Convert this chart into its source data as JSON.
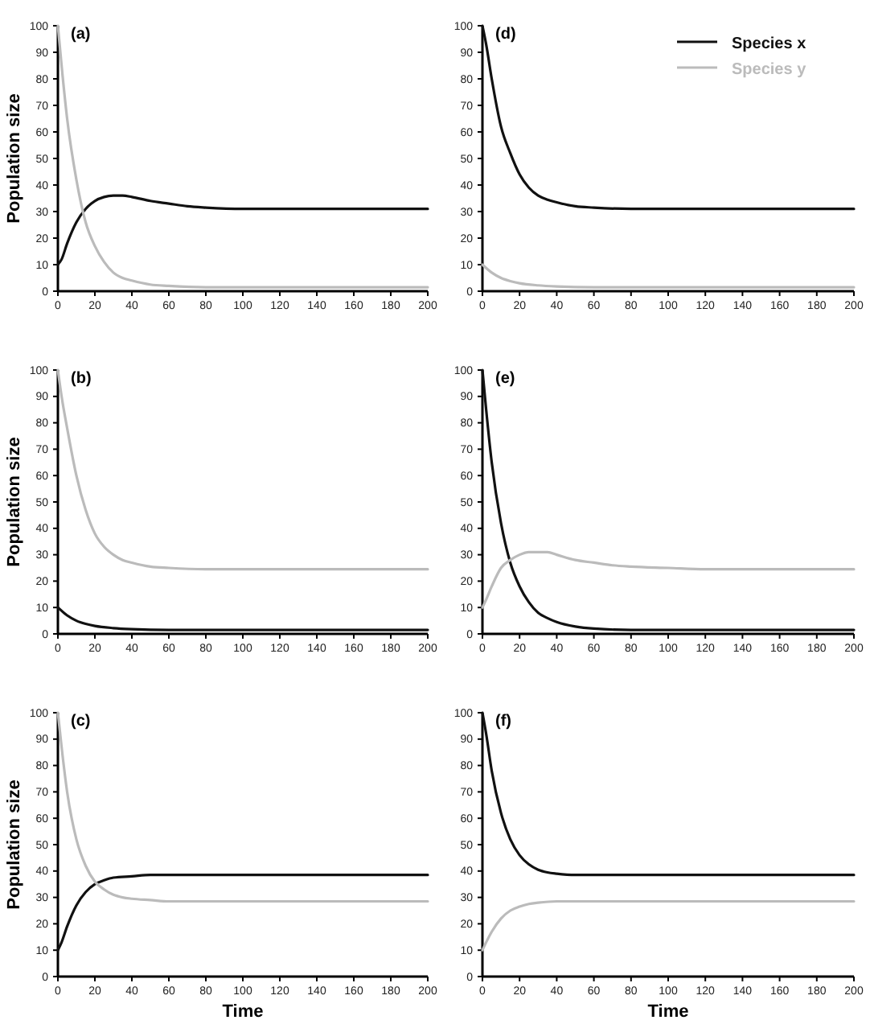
{
  "chart_data": [
    {
      "type": "line",
      "title": "(a)",
      "ylabel": "Population size",
      "xlim": [
        0,
        200
      ],
      "ylim": [
        0,
        100
      ],
      "xticks": [
        0,
        20,
        40,
        60,
        80,
        100,
        120,
        140,
        160,
        180,
        200
      ],
      "yticks": [
        0,
        10,
        20,
        30,
        40,
        50,
        60,
        70,
        80,
        90,
        100
      ],
      "series": [
        {
          "color": "#111111",
          "x": [
            0,
            2,
            5,
            10,
            15,
            20,
            25,
            30,
            35,
            40,
            50,
            60,
            70,
            80,
            100,
            120,
            150,
            200
          ],
          "values": [
            10,
            12,
            18,
            26,
            31,
            34,
            35.5,
            36,
            36,
            35.5,
            34,
            33,
            32,
            31.5,
            31,
            31,
            31,
            31
          ]
        },
        {
          "color": "#bbbbbb",
          "x": [
            0,
            2,
            5,
            10,
            15,
            20,
            25,
            30,
            35,
            40,
            50,
            60,
            80,
            100,
            200
          ],
          "values": [
            100,
            85,
            65,
            42,
            26,
            17,
            11,
            7,
            5,
            4,
            2.5,
            2,
            1.5,
            1.5,
            1.5
          ]
        }
      ]
    },
    {
      "type": "line",
      "title": "(d)",
      "xlim": [
        0,
        200
      ],
      "ylim": [
        0,
        100
      ],
      "xticks": [
        0,
        20,
        40,
        60,
        80,
        100,
        120,
        140,
        160,
        180,
        200
      ],
      "yticks": [
        0,
        10,
        20,
        30,
        40,
        50,
        60,
        70,
        80,
        90,
        100
      ],
      "legend": "top right",
      "series": [
        {
          "name": "Species x",
          "color": "#111111",
          "x": [
            0,
            2,
            5,
            10,
            15,
            20,
            25,
            30,
            35,
            40,
            50,
            60,
            80,
            100,
            200
          ],
          "values": [
            100,
            93,
            80,
            62,
            52,
            44,
            39,
            36,
            34.5,
            33.5,
            32,
            31.5,
            31,
            31,
            31
          ]
        },
        {
          "name": "Species y",
          "color": "#bbbbbb",
          "x": [
            0,
            5,
            10,
            15,
            20,
            30,
            40,
            60,
            100,
            200
          ],
          "values": [
            10,
            7,
            5,
            3.8,
            3,
            2.2,
            1.8,
            1.5,
            1.5,
            1.5
          ]
        }
      ]
    },
    {
      "type": "line",
      "title": "(b)",
      "ylabel": "Population size",
      "xlim": [
        0,
        200
      ],
      "ylim": [
        0,
        100
      ],
      "xticks": [
        0,
        20,
        40,
        60,
        80,
        100,
        120,
        140,
        160,
        180,
        200
      ],
      "yticks": [
        0,
        10,
        20,
        30,
        40,
        50,
        60,
        70,
        80,
        90,
        100
      ],
      "series": [
        {
          "color": "#111111",
          "x": [
            0,
            5,
            10,
            15,
            20,
            30,
            40,
            60,
            200
          ],
          "values": [
            10,
            7,
            5,
            3.8,
            3,
            2.2,
            1.8,
            1.5,
            1.5
          ]
        },
        {
          "color": "#bbbbbb",
          "x": [
            0,
            2,
            5,
            10,
            15,
            20,
            25,
            30,
            35,
            40,
            50,
            60,
            80,
            100,
            200
          ],
          "values": [
            100,
            90,
            78,
            60,
            47,
            38,
            33,
            30,
            28,
            27,
            25.5,
            25,
            24.5,
            24.5,
            24.5
          ]
        }
      ]
    },
    {
      "type": "line",
      "title": "(e)",
      "xlim": [
        0,
        200
      ],
      "ylim": [
        0,
        100
      ],
      "xticks": [
        0,
        20,
        40,
        60,
        80,
        100,
        120,
        140,
        160,
        180,
        200
      ],
      "yticks": [
        0,
        10,
        20,
        30,
        40,
        50,
        60,
        70,
        80,
        90,
        100
      ],
      "series": [
        {
          "color": "#111111",
          "x": [
            0,
            2,
            5,
            10,
            15,
            20,
            25,
            30,
            35,
            40,
            50,
            60,
            80,
            200
          ],
          "values": [
            100,
            85,
            65,
            42,
            27,
            18,
            12,
            8,
            6,
            4.5,
            2.8,
            2,
            1.5,
            1.5
          ]
        },
        {
          "color": "#bbbbbb",
          "x": [
            0,
            2,
            5,
            10,
            15,
            20,
            25,
            30,
            35,
            40,
            50,
            60,
            70,
            80,
            100,
            120,
            200
          ],
          "values": [
            10,
            13,
            18,
            25,
            28,
            30,
            31,
            31,
            31,
            30,
            28,
            27,
            26,
            25.5,
            25,
            24.5,
            24.5
          ]
        }
      ]
    },
    {
      "type": "line",
      "title": "(c)",
      "ylabel": "Population size",
      "xlabel": "Time",
      "xlim": [
        0,
        200
      ],
      "ylim": [
        0,
        100
      ],
      "xticks": [
        0,
        20,
        40,
        60,
        80,
        100,
        120,
        140,
        160,
        180,
        200
      ],
      "yticks": [
        0,
        10,
        20,
        30,
        40,
        50,
        60,
        70,
        80,
        90,
        100
      ],
      "series": [
        {
          "color": "#111111",
          "x": [
            0,
            2,
            5,
            10,
            15,
            20,
            25,
            30,
            40,
            50,
            200
          ],
          "values": [
            10,
            13,
            19,
            27,
            32,
            35,
            36.5,
            37.5,
            38,
            38.5,
            38.5
          ]
        },
        {
          "color": "#bbbbbb",
          "x": [
            0,
            2,
            5,
            10,
            15,
            20,
            25,
            30,
            35,
            40,
            50,
            60,
            200
          ],
          "values": [
            100,
            87,
            70,
            52,
            42,
            36,
            33,
            31,
            30,
            29.5,
            29,
            28.5,
            28.5
          ]
        }
      ]
    },
    {
      "type": "line",
      "title": "(f)",
      "xlabel": "Time",
      "xlim": [
        0,
        200
      ],
      "ylim": [
        0,
        100
      ],
      "xticks": [
        0,
        20,
        40,
        60,
        80,
        100,
        120,
        140,
        160,
        180,
        200
      ],
      "yticks": [
        0,
        10,
        20,
        30,
        40,
        50,
        60,
        70,
        80,
        90,
        100
      ],
      "series": [
        {
          "color": "#111111",
          "x": [
            0,
            2,
            5,
            10,
            15,
            20,
            25,
            30,
            35,
            40,
            50,
            200
          ],
          "values": [
            100,
            92,
            78,
            62,
            52,
            46,
            42.5,
            40.5,
            39.5,
            39,
            38.5,
            38.5
          ]
        },
        {
          "color": "#bbbbbb",
          "x": [
            0,
            2,
            5,
            10,
            15,
            20,
            25,
            30,
            40,
            200
          ],
          "values": [
            10,
            13,
            17,
            22,
            25,
            26.5,
            27.5,
            28,
            28.5,
            28.5
          ]
        }
      ]
    }
  ]
}
